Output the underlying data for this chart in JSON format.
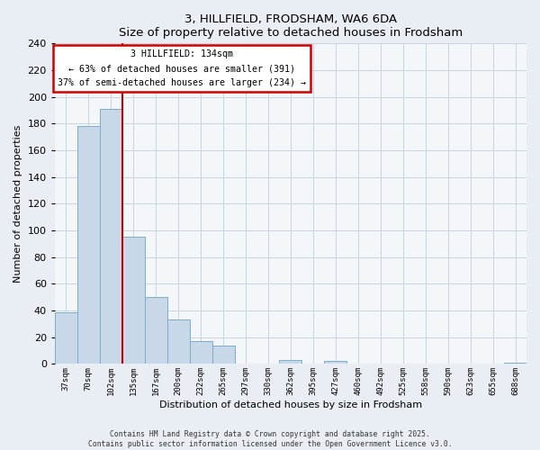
{
  "title": "3, HILLFIELD, FRODSHAM, WA6 6DA",
  "subtitle": "Size of property relative to detached houses in Frodsham",
  "xlabel": "Distribution of detached houses by size in Frodsham",
  "ylabel": "Number of detached properties",
  "bar_labels": [
    "37sqm",
    "70sqm",
    "102sqm",
    "135sqm",
    "167sqm",
    "200sqm",
    "232sqm",
    "265sqm",
    "297sqm",
    "330sqm",
    "362sqm",
    "395sqm",
    "427sqm",
    "460sqm",
    "492sqm",
    "525sqm",
    "558sqm",
    "590sqm",
    "623sqm",
    "655sqm",
    "688sqm"
  ],
  "bar_values": [
    39,
    178,
    191,
    95,
    50,
    33,
    17,
    14,
    0,
    0,
    3,
    0,
    2,
    0,
    0,
    0,
    0,
    0,
    0,
    0,
    1
  ],
  "bar_color": "#c8d8e8",
  "bar_edge_color": "#7aaec8",
  "ylim": [
    0,
    240
  ],
  "yticks": [
    0,
    20,
    40,
    60,
    80,
    100,
    120,
    140,
    160,
    180,
    200,
    220,
    240
  ],
  "vline_x": 3,
  "vline_color": "#cc0000",
  "annotation_title": "3 HILLFIELD: 134sqm",
  "annotation_line1": "← 63% of detached houses are smaller (391)",
  "annotation_line2": "37% of semi-detached houses are larger (234) →",
  "footer_line1": "Contains HM Land Registry data © Crown copyright and database right 2025.",
  "footer_line2": "Contains public sector information licensed under the Open Government Licence v3.0.",
  "background_color": "#e8eef4",
  "plot_bg_color": "#f4f7fa",
  "grid_color": "#c8d4dc"
}
